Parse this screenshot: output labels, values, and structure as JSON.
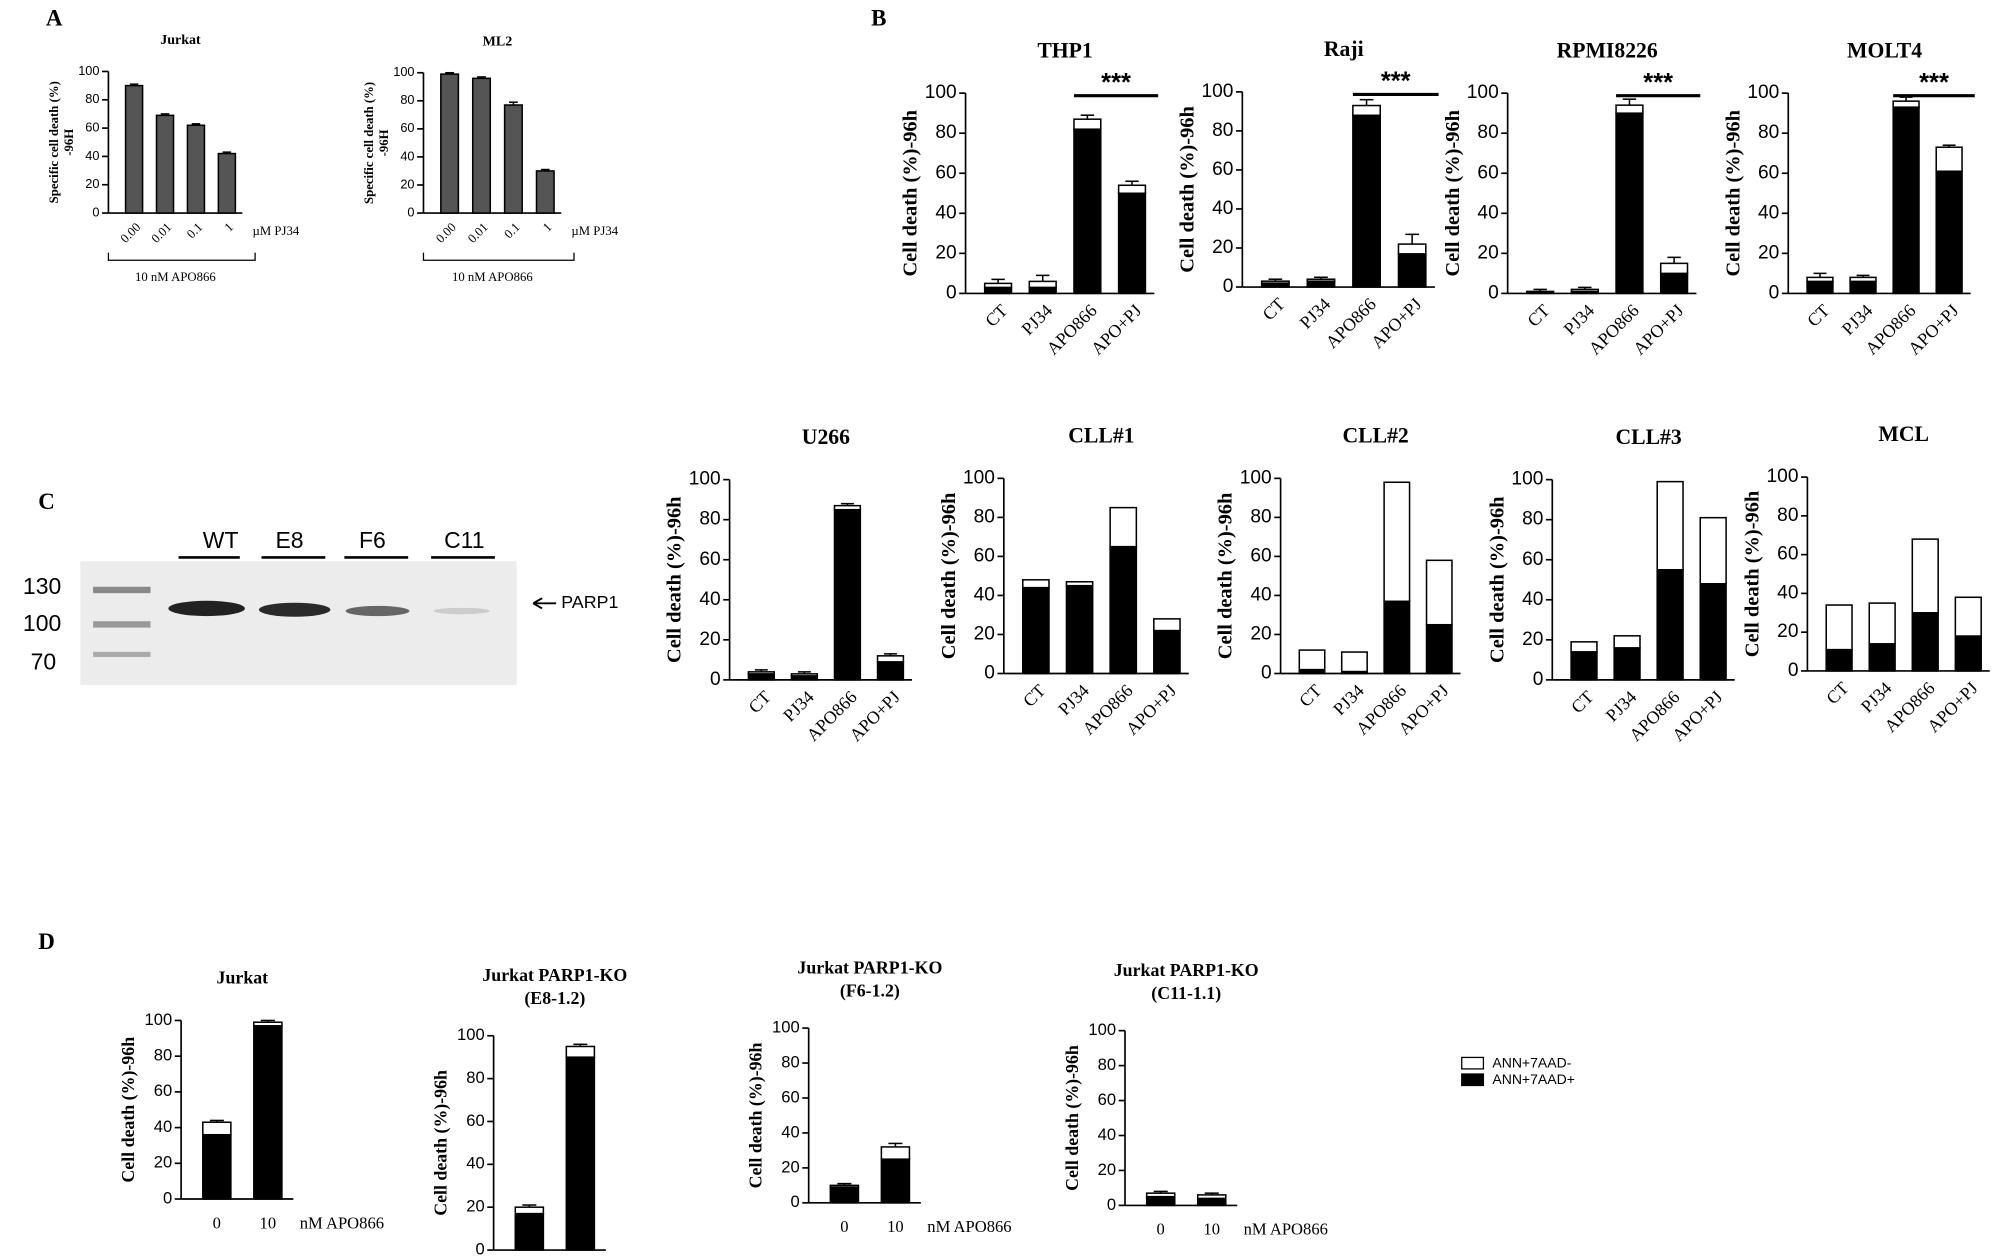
{
  "panel_labels": [
    "A",
    "B",
    "C",
    "D"
  ],
  "blot": {
    "lanes": [
      "WT",
      "E8",
      "F6",
      "C11"
    ],
    "markers": [
      "130",
      "100",
      "70"
    ],
    "band": "PARP1"
  },
  "legend": [
    {
      "name": "ANN+7AAD-",
      "color": "#ffffff"
    },
    {
      "name": "ANN+7AAD+",
      "color": "#000000"
    }
  ],
  "chart_data": [
    {
      "type": "bar",
      "title": "Jurkat",
      "ylabel": [
        "Specific cell death (%)",
        "-96H"
      ],
      "categories": [
        "0.00",
        "0.01",
        "0.1",
        "1"
      ],
      "series": [
        {
          "color": "#555555",
          "values": [
            90,
            69,
            62,
            42
          ]
        }
      ],
      "errors": [
        1,
        1,
        1,
        1
      ],
      "xlabel": "µM PJ34",
      "bracket_label": "10 nM APO866",
      "ylim": [
        0,
        100
      ],
      "yticks": [
        0,
        20,
        40,
        60,
        80,
        100
      ]
    },
    {
      "type": "bar",
      "title": "ML2",
      "ylabel": [
        "Specific cell death (%)",
        "-96H"
      ],
      "categories": [
        "0.00",
        "0.01",
        "0.1",
        "1"
      ],
      "series": [
        {
          "color": "#555555",
          "values": [
            99,
            96,
            77,
            30
          ]
        }
      ],
      "errors": [
        1,
        1,
        2,
        1
      ],
      "xlabel": "µM PJ34",
      "bracket_label": "10 nM APO866",
      "ylim": [
        0,
        100
      ],
      "yticks": [
        0,
        20,
        40,
        60,
        80,
        100
      ]
    },
    {
      "type": "stacked_bar",
      "title": "THP1",
      "ylabel": "Cell death (%)-96h",
      "categories": [
        "CT",
        "PJ34",
        "APO866",
        "APO+PJ"
      ],
      "series": [
        {
          "color": "#000000",
          "values": [
            3,
            3,
            82,
            50
          ]
        },
        {
          "color": "#ffffff",
          "values": [
            2,
            3,
            5,
            4
          ]
        }
      ],
      "errors": [
        2,
        3,
        2,
        2
      ],
      "annotation": "***",
      "ylim": [
        0,
        100
      ],
      "yticks": [
        0,
        20,
        40,
        60,
        80,
        100
      ]
    },
    {
      "type": "stacked_bar",
      "title": "Raji",
      "ylabel": "Cell death (%)-96h",
      "categories": [
        "CT",
        "PJ34",
        "APO866",
        "APO+PJ"
      ],
      "series": [
        {
          "color": "#000000",
          "values": [
            2,
            3,
            88,
            17
          ]
        },
        {
          "color": "#ffffff",
          "values": [
            1,
            1,
            5,
            5
          ]
        }
      ],
      "errors": [
        1,
        1,
        3,
        5
      ],
      "annotation": "***",
      "ylim": [
        0,
        100
      ],
      "yticks": [
        0,
        20,
        40,
        60,
        80,
        100
      ]
    },
    {
      "type": "stacked_bar",
      "title": "RPMI8226",
      "ylabel": "Cell death (%)-96h",
      "categories": [
        "CT",
        "PJ34",
        "APO866",
        "APO+PJ"
      ],
      "series": [
        {
          "color": "#000000",
          "values": [
            1,
            1,
            90,
            10
          ]
        },
        {
          "color": "#ffffff",
          "values": [
            0,
            1,
            4,
            5
          ]
        }
      ],
      "errors": [
        1,
        1,
        3,
        3
      ],
      "annotation": "***",
      "ylim": [
        0,
        100
      ],
      "yticks": [
        0,
        20,
        40,
        60,
        80,
        100
      ]
    },
    {
      "type": "stacked_bar",
      "title": "MOLT4",
      "ylabel": "Cell death (%)-96h",
      "categories": [
        "CT",
        "PJ34",
        "APO866",
        "APO+PJ"
      ],
      "series": [
        {
          "color": "#000000",
          "values": [
            6,
            6,
            93,
            61
          ]
        },
        {
          "color": "#ffffff",
          "values": [
            2,
            2,
            3,
            12
          ]
        }
      ],
      "errors": [
        2,
        1,
        2,
        1
      ],
      "annotation": "***",
      "ylim": [
        0,
        100
      ],
      "yticks": [
        0,
        20,
        40,
        60,
        80,
        100
      ]
    },
    {
      "type": "stacked_bar",
      "title": "U266",
      "ylabel": "Cell death (%)-96h",
      "categories": [
        "CT",
        "PJ34",
        "APO866",
        "APO+PJ"
      ],
      "series": [
        {
          "color": "#000000",
          "values": [
            3,
            2,
            85,
            9
          ]
        },
        {
          "color": "#ffffff",
          "values": [
            1,
            1,
            2,
            3
          ]
        }
      ],
      "errors": [
        1,
        1,
        1,
        1
      ],
      "ylim": [
        0,
        100
      ],
      "yticks": [
        0,
        20,
        40,
        60,
        80,
        100
      ]
    },
    {
      "type": "stacked_bar",
      "title": "CLL#1",
      "ylabel": "Cell death (%)-96h",
      "categories": [
        "CT",
        "PJ34",
        "APO866",
        "APO+PJ"
      ],
      "series": [
        {
          "color": "#000000",
          "values": [
            44,
            45,
            65,
            22
          ]
        },
        {
          "color": "#ffffff",
          "values": [
            4,
            2,
            20,
            6
          ]
        }
      ],
      "ylim": [
        0,
        100
      ],
      "yticks": [
        0,
        20,
        40,
        60,
        80,
        100
      ]
    },
    {
      "type": "stacked_bar",
      "title": "CLL#2",
      "ylabel": "Cell death (%)-96h",
      "categories": [
        "CT",
        "PJ34",
        "APO866",
        "APO+PJ"
      ],
      "series": [
        {
          "color": "#000000",
          "values": [
            2,
            1,
            37,
            25
          ]
        },
        {
          "color": "#ffffff",
          "values": [
            10,
            10,
            61,
            33
          ]
        }
      ],
      "ylim": [
        0,
        100
      ],
      "yticks": [
        0,
        20,
        40,
        60,
        80,
        100
      ]
    },
    {
      "type": "stacked_bar",
      "title": "CLL#3",
      "ylabel": "Cell death (%)-96h",
      "categories": [
        "CT",
        "PJ34",
        "APO866",
        "APO+PJ"
      ],
      "series": [
        {
          "color": "#000000",
          "values": [
            14,
            16,
            55,
            48
          ]
        },
        {
          "color": "#ffffff",
          "values": [
            5,
            6,
            44,
            33
          ]
        }
      ],
      "ylim": [
        0,
        100
      ],
      "yticks": [
        0,
        20,
        40,
        60,
        80,
        100
      ]
    },
    {
      "type": "stacked_bar",
      "title": "MCL",
      "ylabel": "Cell death (%)-96h",
      "categories": [
        "CT",
        "PJ34",
        "APO866",
        "APO+PJ"
      ],
      "series": [
        {
          "color": "#000000",
          "values": [
            11,
            14,
            30,
            18
          ]
        },
        {
          "color": "#ffffff",
          "values": [
            23,
            21,
            38,
            20
          ]
        }
      ],
      "ylim": [
        0,
        100
      ],
      "yticks": [
        0,
        20,
        40,
        60,
        80,
        100
      ]
    },
    {
      "type": "stacked_bar",
      "title": "Jurkat",
      "ylabel": "Cell death (%)-96h",
      "categories": [
        "0",
        "10"
      ],
      "series": [
        {
          "color": "#000000",
          "values": [
            36,
            97
          ]
        },
        {
          "color": "#ffffff",
          "values": [
            7,
            2
          ]
        }
      ],
      "errors": [
        1,
        1
      ],
      "xlabel": "nM APO866",
      "ylim": [
        0,
        100
      ],
      "yticks": [
        0,
        20,
        40,
        60,
        80,
        100
      ]
    },
    {
      "type": "stacked_bar",
      "title": [
        "Jurkat PARP1-KO",
        "(E8-1.2)"
      ],
      "ylabel": "Cell death (%)-96h",
      "categories": [
        "0",
        "10"
      ],
      "series": [
        {
          "color": "#000000",
          "values": [
            17,
            90
          ]
        },
        {
          "color": "#ffffff",
          "values": [
            3,
            5
          ]
        }
      ],
      "errors": [
        1,
        1
      ],
      "xlabel": "nM APO866",
      "ylim": [
        0,
        100
      ],
      "yticks": [
        0,
        20,
        40,
        60,
        80,
        100
      ]
    },
    {
      "type": "stacked_bar",
      "title": [
        "Jurkat PARP1-KO",
        "(F6-1.2)"
      ],
      "ylabel": "Cell death (%)-96h",
      "categories": [
        "0",
        "10"
      ],
      "series": [
        {
          "color": "#000000",
          "values": [
            9,
            25
          ]
        },
        {
          "color": "#ffffff",
          "values": [
            1,
            7
          ]
        }
      ],
      "errors": [
        1,
        2
      ],
      "xlabel": "nM APO866",
      "ylim": [
        0,
        100
      ],
      "yticks": [
        0,
        20,
        40,
        60,
        80,
        100
      ]
    },
    {
      "type": "stacked_bar",
      "title": [
        "Jurkat PARP1-KO",
        "(C11-1.1)"
      ],
      "ylabel": "Cell death (%)-96h",
      "categories": [
        "0",
        "10"
      ],
      "series": [
        {
          "color": "#000000",
          "values": [
            5,
            4
          ]
        },
        {
          "color": "#ffffff",
          "values": [
            2,
            2
          ]
        }
      ],
      "errors": [
        1,
        1
      ],
      "xlabel": "nM APO866",
      "ylim": [
        0,
        100
      ],
      "yticks": [
        0,
        20,
        40,
        60,
        80,
        100
      ]
    }
  ]
}
